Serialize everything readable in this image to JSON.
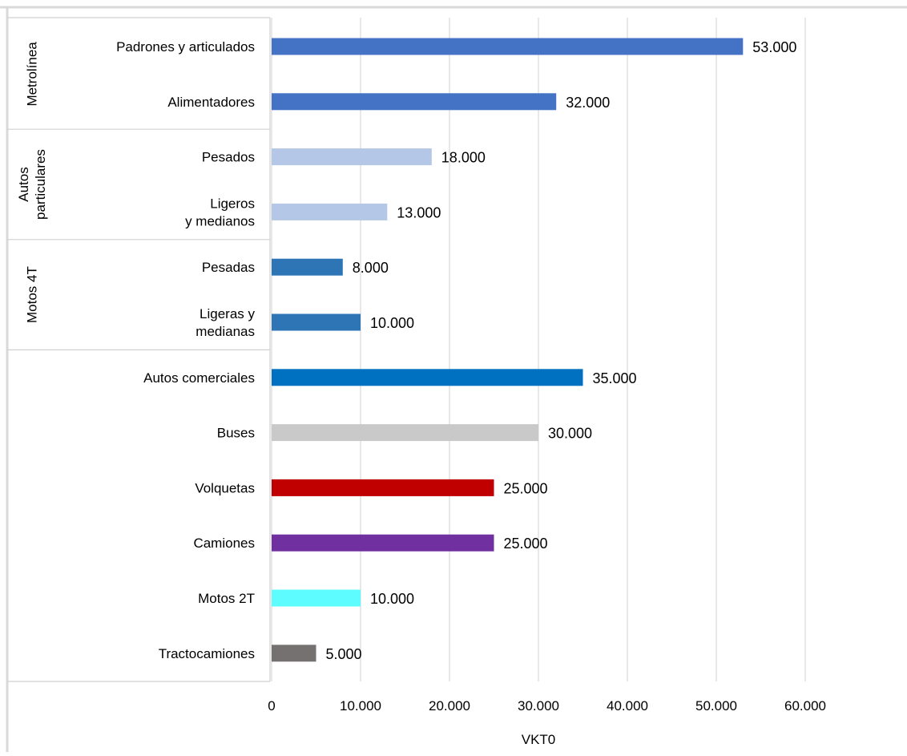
{
  "chart_data": {
    "type": "bar",
    "orientation": "horizontal",
    "xlabel": "VKT0",
    "ylabel": "",
    "xlim": [
      0,
      60000
    ],
    "grid": true,
    "legend": "none",
    "x_ticks": [
      {
        "value": 0,
        "label": "0"
      },
      {
        "value": 10000,
        "label": "10.000"
      },
      {
        "value": 20000,
        "label": "20.000"
      },
      {
        "value": 30000,
        "label": "30.000"
      },
      {
        "value": 40000,
        "label": "40.000"
      },
      {
        "value": 50000,
        "label": "50.000"
      },
      {
        "value": 60000,
        "label": "60.000"
      }
    ],
    "groups": [
      {
        "label": "Metrolínea",
        "label_lines": [
          "Metrolínea"
        ],
        "items": [
          0,
          1
        ]
      },
      {
        "label": "Autos particulares",
        "label_lines": [
          "Autos",
          "particulares"
        ],
        "items": [
          2,
          3
        ]
      },
      {
        "label": "Motos 4T",
        "label_lines": [
          "Motos 4T"
        ],
        "items": [
          4,
          5
        ]
      },
      {
        "label": "",
        "label_lines": [],
        "items": [
          6,
          7,
          8,
          9,
          10,
          11
        ]
      }
    ],
    "bars": [
      {
        "category": "Padrones y articulados",
        "category_lines": [
          "Padrones y articulados"
        ],
        "value": 53000,
        "value_label": "53.000",
        "color": "#4472C4"
      },
      {
        "category": "Alimentadores",
        "category_lines": [
          "Alimentadores"
        ],
        "value": 32000,
        "value_label": "32.000",
        "color": "#4472C4"
      },
      {
        "category": "Pesados",
        "category_lines": [
          "Pesados"
        ],
        "value": 18000,
        "value_label": "18.000",
        "color": "#B4C7E7"
      },
      {
        "category": "Ligeros y medianos",
        "category_lines": [
          "Ligeros",
          "y medianos"
        ],
        "value": 13000,
        "value_label": "13.000",
        "color": "#B4C7E7"
      },
      {
        "category": "Pesadas",
        "category_lines": [
          "Pesadas"
        ],
        "value": 8000,
        "value_label": "8.000",
        "color": "#2E75B6"
      },
      {
        "category": "Ligeras y medianas",
        "category_lines": [
          "Ligeras y",
          "medianas"
        ],
        "value": 10000,
        "value_label": "10.000",
        "color": "#2E75B6"
      },
      {
        "category": "Autos comerciales",
        "category_lines": [
          "Autos comerciales"
        ],
        "value": 35000,
        "value_label": "35.000",
        "color": "#0070C0"
      },
      {
        "category": "Buses",
        "category_lines": [
          "Buses"
        ],
        "value": 30000,
        "value_label": "30.000",
        "color": "#C9C9C9"
      },
      {
        "category": "Volquetas",
        "category_lines": [
          "Volquetas"
        ],
        "value": 25000,
        "value_label": "25.000",
        "color": "#C00000"
      },
      {
        "category": "Camiones",
        "category_lines": [
          "Camiones"
        ],
        "value": 25000,
        "value_label": "25.000",
        "color": "#7030A0"
      },
      {
        "category": "Motos 2T",
        "category_lines": [
          "Motos 2T"
        ],
        "value": 10000,
        "value_label": "10.000",
        "color": "#5DFDFF"
      },
      {
        "category": "Tractocamiones",
        "category_lines": [
          "Tractocamiones"
        ],
        "value": 5000,
        "value_label": "5.000",
        "color": "#767171"
      }
    ]
  }
}
